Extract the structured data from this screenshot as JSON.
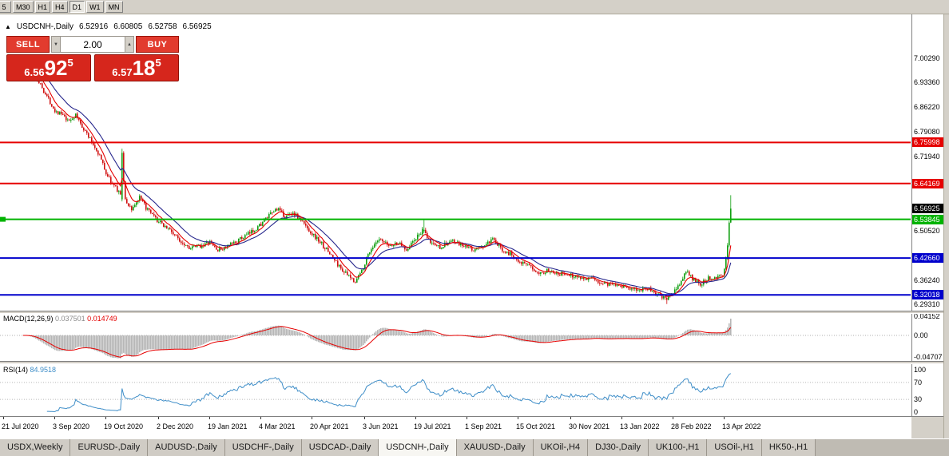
{
  "toolbar": {
    "timeframes": [
      "5",
      "M30",
      "H1",
      "H4",
      "D1",
      "W1",
      "MN"
    ],
    "active": "D1"
  },
  "chart_header": {
    "collapse_icon": "▲",
    "symbol": "USDCNH-,Daily",
    "open": "6.52916",
    "high": "6.60805",
    "low": "6.52758",
    "close": "6.56925"
  },
  "trade_panel": {
    "sell_label": "SELL",
    "buy_label": "BUY",
    "volume": "2.00",
    "volume_down_icon": "▼",
    "volume_up_icon": "▲",
    "bid": {
      "prefix": "6.56",
      "big": "92",
      "sup": "5"
    },
    "ask": {
      "prefix": "6.57",
      "big": "18",
      "sup": "5"
    }
  },
  "price_axis": {
    "labels": [
      {
        "text": "7.00290",
        "price": 7.0029,
        "style": "plain"
      },
      {
        "text": "6.93360",
        "price": 6.9336,
        "style": "plain"
      },
      {
        "text": "6.86220",
        "price": 6.8622,
        "style": "plain"
      },
      {
        "text": "6.79080",
        "price": 6.7908,
        "style": "plain"
      },
      {
        "text": "6.75998",
        "price": 6.75998,
        "style": "red"
      },
      {
        "text": "6.71940",
        "price": 6.7194,
        "style": "plain"
      },
      {
        "text": "6.64169",
        "price": 6.64169,
        "style": "red"
      },
      {
        "text": "6.56925",
        "price": 6.56925,
        "style": "black"
      },
      {
        "text": "6.53845",
        "price": 6.53845,
        "style": "green"
      },
      {
        "text": "6.50520",
        "price": 6.5052,
        "style": "plain"
      },
      {
        "text": "6.42660",
        "price": 6.4266,
        "style": "blue"
      },
      {
        "text": "6.36240",
        "price": 6.3624,
        "style": "plain"
      },
      {
        "text": "6.32018",
        "price": 6.32018,
        "style": "blue"
      },
      {
        "text": "6.29310",
        "price": 6.2931,
        "style": "plain"
      }
    ]
  },
  "hlines": [
    {
      "price": 6.75998,
      "color": "#e60000"
    },
    {
      "price": 6.64169,
      "color": "#e60000"
    },
    {
      "price": 6.53845,
      "color": "#00b300"
    },
    {
      "price": 6.4266,
      "color": "#0000cc"
    },
    {
      "price": 6.32018,
      "color": "#0000cc"
    }
  ],
  "macd_panel": {
    "name": "MACD(12,26,9)",
    "main_value": "0.037501",
    "signal_value": "0.014749",
    "axis": [
      {
        "text": "0.04152",
        "value": 0.04152
      },
      {
        "text": "0.00",
        "value": 0
      },
      {
        "text": "-0.04707",
        "value": -0.04707
      }
    ]
  },
  "rsi_panel": {
    "name": "RSI(14)",
    "value": "84.9518",
    "axis": [
      {
        "text": "100",
        "value": 100
      },
      {
        "text": "70",
        "value": 70
      },
      {
        "text": "30",
        "value": 30
      },
      {
        "text": "0",
        "value": 0
      }
    ],
    "levels": [
      70,
      30
    ]
  },
  "date_axis": {
    "labels": [
      {
        "text": "21 Jul 2020",
        "day": 0
      },
      {
        "text": "3 Sep 2020",
        "day": 32
      },
      {
        "text": "19 Oct 2020",
        "day": 64
      },
      {
        "text": "2 Dec 2020",
        "day": 97
      },
      {
        "text": "19 Jan 2021",
        "day": 129
      },
      {
        "text": "4 Mar 2021",
        "day": 161
      },
      {
        "text": "20 Apr 2021",
        "day": 193
      },
      {
        "text": "3 Jun 2021",
        "day": 226
      },
      {
        "text": "19 Jul 2021",
        "day": 258
      },
      {
        "text": "1 Sep 2021",
        "day": 290
      },
      {
        "text": "15 Oct 2021",
        "day": 322
      },
      {
        "text": "30 Nov 2021",
        "day": 355
      },
      {
        "text": "13 Jan 2022",
        "day": 387
      },
      {
        "text": "28 Feb 2022",
        "day": 419
      },
      {
        "text": "13 Apr 2022",
        "day": 451
      }
    ]
  },
  "tabs": {
    "items": [
      {
        "label": "USDX,Weekly",
        "active": false
      },
      {
        "label": "EURUSD-,Daily",
        "active": false
      },
      {
        "label": "AUDUSD-,Daily",
        "active": false
      },
      {
        "label": "USDCHF-,Daily",
        "active": false
      },
      {
        "label": "USDCAD-,Daily",
        "active": false
      },
      {
        "label": "USDCNH-,Daily",
        "active": true
      },
      {
        "label": "XAUUSD-,Daily",
        "active": false
      },
      {
        "label": "UKOil-,H4",
        "active": false
      },
      {
        "label": "DJ30-,Daily",
        "active": false
      },
      {
        "label": "UK100-,H1",
        "active": false
      },
      {
        "label": "USOil-,H1",
        "active": false
      },
      {
        "label": "HK50-,H1",
        "active": false
      }
    ]
  },
  "chart_data": {
    "type": "candlestick",
    "title": "USDCNH-,Daily",
    "last_bar": {
      "open": 6.52916,
      "high": 6.60805,
      "low": 6.52758,
      "close": 6.56925
    },
    "visible_range": {
      "start": "21 Jul 2020",
      "end": "13 Apr 2022"
    },
    "y_range": [
      6.277,
      7.107
    ],
    "start_day": 12,
    "end_day": 455,
    "price_path": [
      [
        12,
        6.992
      ],
      [
        16,
        6.975
      ],
      [
        20,
        6.952
      ],
      [
        24,
        6.918
      ],
      [
        28,
        6.885
      ],
      [
        32,
        6.852
      ],
      [
        36,
        6.842
      ],
      [
        40,
        6.82
      ],
      [
        45,
        6.838
      ],
      [
        50,
        6.8
      ],
      [
        55,
        6.762
      ],
      [
        60,
        6.722
      ],
      [
        64,
        6.672
      ],
      [
        68,
        6.64
      ],
      [
        72,
        6.618
      ],
      [
        76,
        6.592
      ],
      [
        80,
        6.568
      ],
      [
        85,
        6.6
      ],
      [
        90,
        6.565
      ],
      [
        96,
        6.534
      ],
      [
        103,
        6.512
      ],
      [
        110,
        6.478
      ],
      [
        117,
        6.455
      ],
      [
        123,
        6.462
      ],
      [
        129,
        6.472
      ],
      [
        134,
        6.448
      ],
      [
        140,
        6.46
      ],
      [
        147,
        6.478
      ],
      [
        154,
        6.498
      ],
      [
        160,
        6.521
      ],
      [
        166,
        6.548
      ],
      [
        171,
        6.57
      ],
      [
        176,
        6.545
      ],
      [
        181,
        6.558
      ],
      [
        186,
        6.535
      ],
      [
        192,
        6.502
      ],
      [
        198,
        6.472
      ],
      [
        204,
        6.44
      ],
      [
        210,
        6.402
      ],
      [
        216,
        6.372
      ],
      [
        220,
        6.36
      ],
      [
        224,
        6.39
      ],
      [
        229,
        6.448
      ],
      [
        235,
        6.478
      ],
      [
        241,
        6.462
      ],
      [
        247,
        6.47
      ],
      [
        252,
        6.452
      ],
      [
        257,
        6.478
      ],
      [
        262,
        6.505
      ],
      [
        267,
        6.472
      ],
      [
        273,
        6.458
      ],
      [
        280,
        6.476
      ],
      [
        287,
        6.462
      ],
      [
        294,
        6.45
      ],
      [
        300,
        6.46
      ],
      [
        306,
        6.478
      ],
      [
        312,
        6.452
      ],
      [
        318,
        6.435
      ],
      [
        324,
        6.415
      ],
      [
        330,
        6.398
      ],
      [
        336,
        6.385
      ],
      [
        342,
        6.392
      ],
      [
        348,
        6.382
      ],
      [
        354,
        6.378
      ],
      [
        360,
        6.372
      ],
      [
        366,
        6.368
      ],
      [
        372,
        6.358
      ],
      [
        378,
        6.352
      ],
      [
        384,
        6.352
      ],
      [
        390,
        6.342
      ],
      [
        396,
        6.332
      ],
      [
        402,
        6.342
      ],
      [
        408,
        6.322
      ],
      [
        414,
        6.31
      ],
      [
        418,
        6.318
      ],
      [
        423,
        6.352
      ],
      [
        427,
        6.388
      ],
      [
        432,
        6.362
      ],
      [
        436,
        6.352
      ],
      [
        440,
        6.366
      ],
      [
        444,
        6.372
      ],
      [
        448,
        6.376
      ],
      [
        450,
        6.378
      ]
    ],
    "special_bars": [
      {
        "day": 74,
        "o": 6.596,
        "h": 6.742,
        "l": 6.59,
        "c": 6.73
      },
      {
        "day": 75,
        "o": 6.73,
        "h": 6.735,
        "l": 6.64,
        "c": 6.648
      },
      {
        "day": 263,
        "o": 6.504,
        "h": 6.536,
        "l": 6.498,
        "c": 6.508
      },
      {
        "day": 415,
        "o": 6.312,
        "h": 6.32,
        "l": 6.294,
        "c": 6.306
      }
    ],
    "final_bars": [
      {
        "o": 6.376,
        "h": 6.398,
        "l": 6.37,
        "c": 6.395
      },
      {
        "o": 6.395,
        "h": 6.431,
        "l": 6.392,
        "c": 6.428
      },
      {
        "o": 6.428,
        "h": 6.47,
        "l": 6.421,
        "c": 6.463
      },
      {
        "o": 6.463,
        "h": 6.534,
        "l": 6.458,
        "c": 6.529
      },
      {
        "o": 6.52916,
        "h": 6.60805,
        "l": 6.52758,
        "c": 6.56925
      }
    ],
    "colors": {
      "up": "#0f9e0f",
      "down": "#d01010",
      "ma_fast": "#e60000",
      "ma_slow": "#26268c",
      "macd_hist": "#b6b6b6",
      "macd_signal": "#e60000",
      "rsi": "#3f8ec8",
      "hline_red": "#e60000",
      "hline_green": "#00b300",
      "hline_blue": "#0000cc"
    }
  }
}
